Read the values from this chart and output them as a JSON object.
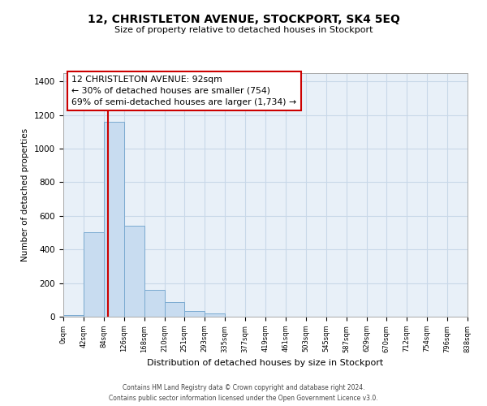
{
  "title": "12, CHRISTLETON AVENUE, STOCKPORT, SK4 5EQ",
  "subtitle": "Size of property relative to detached houses in Stockport",
  "xlabel": "Distribution of detached houses by size in Stockport",
  "ylabel": "Number of detached properties",
  "bin_labels": [
    "0sqm",
    "42sqm",
    "84sqm",
    "126sqm",
    "168sqm",
    "210sqm",
    "251sqm",
    "293sqm",
    "335sqm",
    "377sqm",
    "419sqm",
    "461sqm",
    "503sqm",
    "545sqm",
    "587sqm",
    "629sqm",
    "670sqm",
    "712sqm",
    "754sqm",
    "796sqm",
    "838sqm"
  ],
  "bar_values": [
    10,
    505,
    1160,
    540,
    160,
    85,
    35,
    20,
    0,
    0,
    0,
    0,
    0,
    0,
    0,
    0,
    0,
    0,
    0,
    0
  ],
  "bar_color": "#c8dcf0",
  "bar_edge_color": "#7aaad0",
  "property_line_x": 92,
  "property_line_color": "#cc0000",
  "annotation_title": "12 CHRISTLETON AVENUE: 92sqm",
  "annotation_line1": "← 30% of detached houses are smaller (754)",
  "annotation_line2": "69% of semi-detached houses are larger (1,734) →",
  "annotation_box_color": "#ffffff",
  "annotation_box_edge": "#cc0000",
  "ylim": [
    0,
    1450
  ],
  "yticks": [
    0,
    200,
    400,
    600,
    800,
    1000,
    1200,
    1400
  ],
  "footer_line1": "Contains HM Land Registry data © Crown copyright and database right 2024.",
  "footer_line2": "Contains public sector information licensed under the Open Government Licence v3.0.",
  "bg_color": "#ffffff",
  "plot_bg_color": "#e8f0f8",
  "grid_color": "#c8d8e8",
  "bin_edges": [
    0,
    42,
    84,
    126,
    168,
    210,
    251,
    293,
    335,
    377,
    419,
    461,
    503,
    545,
    587,
    629,
    670,
    712,
    754,
    796,
    838
  ]
}
